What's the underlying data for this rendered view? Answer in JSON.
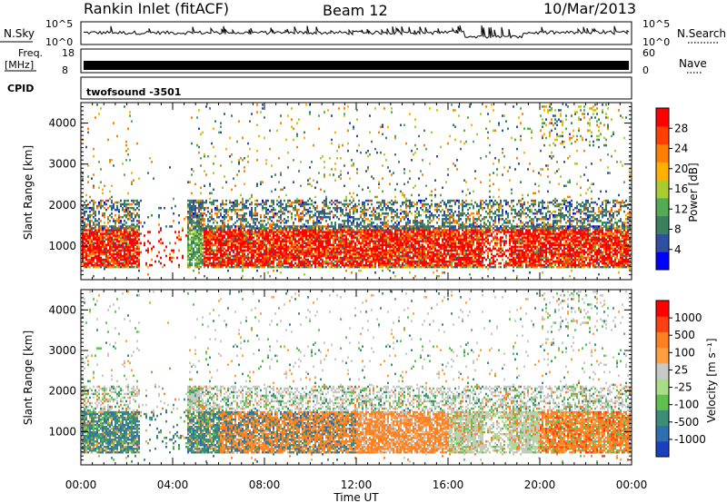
{
  "header": {
    "station": "Rankin Inlet (fitACF)",
    "beam": "Beam 12",
    "date": "10/Mar/2013"
  },
  "strips": {
    "nsky_label": "N.Sky",
    "nsky_ticks": [
      "10^5",
      "10^0"
    ],
    "nsearch_label": "N.Search",
    "nsearch_ticks": [
      "10^5",
      "10^0"
    ],
    "freq_label_1": "Freq.",
    "freq_label_2": "[MHz]",
    "freq_ticks": [
      "18",
      "8"
    ],
    "nave_label": "Nave",
    "nave_ticks": [
      "60",
      "0"
    ],
    "cpid_label": "CPID",
    "cpid_value": "twofsound -3501"
  },
  "colors": {
    "power_scale": [
      "#0000ff",
      "#2f4fa0",
      "#3c8060",
      "#55aa55",
      "#aacc33",
      "#ffb000",
      "#ff8000",
      "#ff4000",
      "#ff0000"
    ],
    "velocity_scale": [
      "#1a3fbf",
      "#2f6fb0",
      "#3c8c78",
      "#5fc050",
      "#aadd88",
      "#c8c8c8",
      "#ffa040",
      "#ff8020",
      "#ff4010",
      "#ff0000"
    ]
  },
  "chart_data": [
    {
      "type": "heatmap",
      "panel": "power",
      "ylabel": "Slant Range [km]",
      "xlabel": "Time UT",
      "x_ticks": [
        "00:00",
        "04:00",
        "08:00",
        "12:00",
        "16:00",
        "20:00",
        "00:00"
      ],
      "xlim_hours": [
        0,
        24
      ],
      "y_ticks": [
        "1000",
        "2000",
        "3000",
        "4000"
      ],
      "ylim_km": [
        180,
        4500
      ],
      "colorbar_label": "Power [dB]",
      "colorbar_ticks": [
        "28",
        "24",
        "20",
        "16",
        "12",
        "8",
        "4"
      ],
      "colorbar_range": [
        0,
        30
      ]
    },
    {
      "type": "heatmap",
      "panel": "velocity",
      "ylabel": "Slant Range [km]",
      "xlabel": "Time UT",
      "x_ticks": [
        "00:00",
        "04:00",
        "08:00",
        "12:00",
        "16:00",
        "20:00",
        "00:00"
      ],
      "xlim_hours": [
        0,
        24
      ],
      "y_ticks": [
        "1000",
        "2000",
        "3000",
        "4000"
      ],
      "ylim_km": [
        180,
        4500
      ],
      "colorbar_label": "Velocity [m s⁻¹]",
      "colorbar_ticks": [
        "1000",
        "500",
        "100",
        "25",
        "-25",
        "-100",
        "-500",
        "-1000"
      ]
    }
  ]
}
